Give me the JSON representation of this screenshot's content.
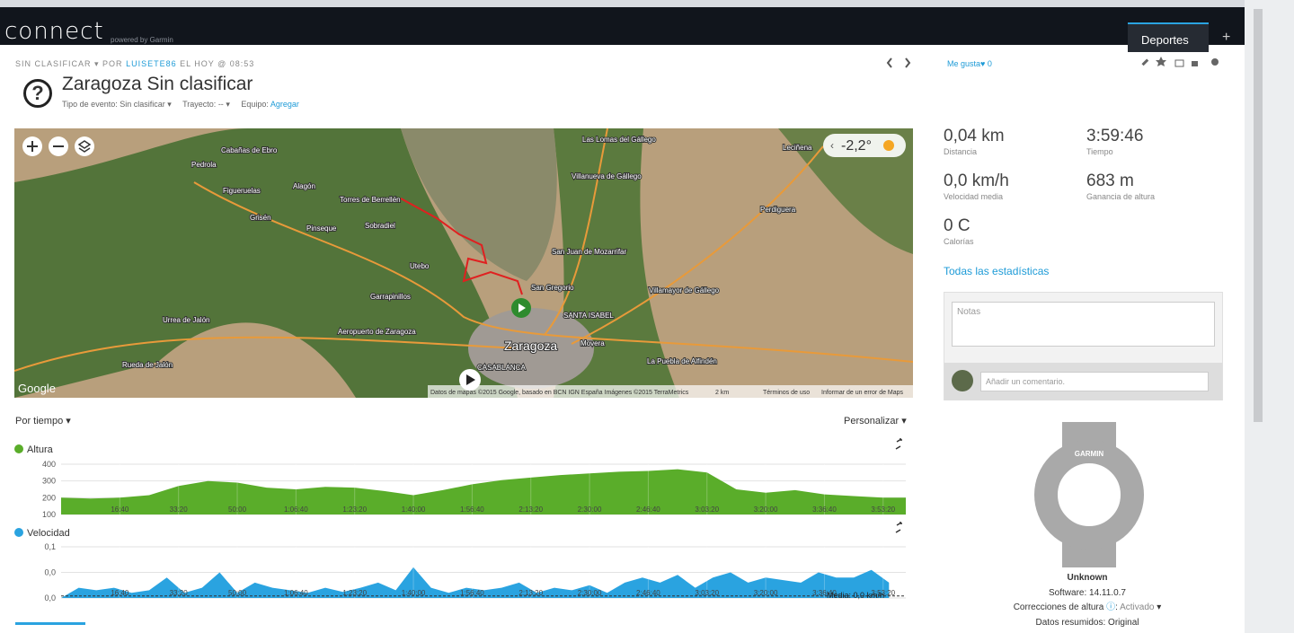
{
  "header": {
    "logo": "connect",
    "powered": "powered by Garmin",
    "menu": "Deportes",
    "add": "+"
  },
  "activity": {
    "breadcrumb": "SIN CLASIFICAR",
    "by": "POR",
    "user": "LUISETE86",
    "when": "EL HOY @ 08:53",
    "icon": "?",
    "title": "Zaragoza Sin clasificar",
    "event_label": "Tipo de evento:",
    "event": "Sin clasificar",
    "course_label": "Trayecto:",
    "course": "--",
    "gear_label": "Equipo:",
    "gear": "Agregar",
    "like": "Me gusta",
    "likes": 0
  },
  "map": {
    "temperature": "-2,2°",
    "google": "Google",
    "places": [
      "Cabañas de Ebro",
      "Pedrola",
      "Alagón",
      "Figueruelas",
      "Grisén",
      "Torres de Berrellén",
      "Pinseque",
      "Sobradiel",
      "Utebo",
      "Garrapinillos",
      "Urrea de Jalón",
      "Rueda de Jalón",
      "Aeropuerto de Zaragoza",
      "Zaragoza",
      "CASABLANCA",
      "Las Lomas del Gállego",
      "Villanueva de Gállego",
      "Leciñena",
      "Perdiguera",
      "San Juan de Mozarrifar",
      "San Gregorio",
      "Villamayor de Gállego",
      "SANTA ISABEL",
      "Movera",
      "La Puebla de Alfindén"
    ],
    "attribution": "Datos de mapas ©2015 Google, basado en BCN IGN España Imágenes ©2015 TerraMetrics",
    "scale": "2 km",
    "terms": "Términos de uso",
    "report": "Informar de un error de Maps"
  },
  "chart_controls": {
    "mode": "Por tiempo",
    "customize": "Personalizar"
  },
  "stats": [
    {
      "value": "0,04 km",
      "label": "Distancia"
    },
    {
      "value": "3:59:46",
      "label": "Tiempo"
    },
    {
      "value": "0,0 km/h",
      "label": "Velocidad media"
    },
    {
      "value": "683 m",
      "label": "Ganancia de altura"
    },
    {
      "value": "0 C",
      "label": "Calorías"
    }
  ],
  "all_stats": "Todas las estadísticas",
  "notes": "Notas",
  "comment": "Añadir un comentario.",
  "device": {
    "brand": "GARMIN",
    "name": "Unknown",
    "software": "Software: 14.11.0.7",
    "corrections_label": "Correcciones de altura",
    "corrections": "Activado",
    "summary": "Datos resumidos: Original"
  },
  "chart_data": [
    {
      "type": "area",
      "title": "Altura",
      "color": "#5aad2a",
      "x": [
        0,
        500,
        1000,
        1500,
        2000,
        2500,
        3000,
        3500,
        4000,
        4500,
        5000,
        5500,
        6000,
        6500,
        7000,
        7500,
        8000,
        8500,
        9000,
        9500,
        10000,
        10500,
        11000,
        11500,
        12000,
        12500,
        13000,
        13500,
        14000,
        14386
      ],
      "values": [
        200,
        195,
        200,
        215,
        270,
        300,
        290,
        260,
        250,
        265,
        260,
        240,
        215,
        245,
        280,
        305,
        320,
        335,
        345,
        355,
        360,
        370,
        350,
        250,
        230,
        245,
        220,
        210,
        200,
        200
      ],
      "xlim": [
        0,
        14386
      ],
      "ylim": [
        100,
        400
      ],
      "yticks": [
        100,
        200,
        300,
        400
      ],
      "xticks": [
        {
          "value": 1000,
          "label": "16:40"
        },
        {
          "value": 2000,
          "label": "33:20"
        },
        {
          "value": 3000,
          "label": "50:00"
        },
        {
          "value": 4000,
          "label": "1:06:40"
        },
        {
          "value": 5000,
          "label": "1:23:20"
        },
        {
          "value": 6000,
          "label": "1:40:00"
        },
        {
          "value": 7000,
          "label": "1:56:40"
        },
        {
          "value": 8000,
          "label": "2:13:20"
        },
        {
          "value": 9000,
          "label": "2:30:00"
        },
        {
          "value": 10000,
          "label": "2:46:40"
        },
        {
          "value": 11000,
          "label": "3:03:20"
        },
        {
          "value": 12000,
          "label": "3:20:00"
        },
        {
          "value": 13000,
          "label": "3:36:40"
        },
        {
          "value": 14000,
          "label": "3:53:20"
        }
      ],
      "grid": true
    },
    {
      "type": "area",
      "title": "Velocidad",
      "color": "#2aa3e0",
      "x": [
        0,
        300,
        600,
        900,
        1200,
        1500,
        1800,
        2100,
        2400,
        2700,
        3000,
        3300,
        3600,
        3900,
        4200,
        4500,
        4800,
        5100,
        5400,
        5700,
        6000,
        6300,
        6600,
        6900,
        7200,
        7500,
        7800,
        8100,
        8400,
        8700,
        9000,
        9300,
        9600,
        9900,
        10200,
        10500,
        10800,
        11100,
        11400,
        11700,
        12000,
        12300,
        12600,
        12900,
        13200,
        13500,
        13800,
        14100
      ],
      "values": [
        0.0,
        0.02,
        0.015,
        0.02,
        0.01,
        0.015,
        0.04,
        0.01,
        0.02,
        0.05,
        0.01,
        0.03,
        0.02,
        0.015,
        0.01,
        0.02,
        0.012,
        0.02,
        0.03,
        0.015,
        0.06,
        0.02,
        0.01,
        0.02,
        0.015,
        0.02,
        0.03,
        0.01,
        0.02,
        0.015,
        0.025,
        0.01,
        0.03,
        0.04,
        0.03,
        0.045,
        0.02,
        0.04,
        0.05,
        0.03,
        0.04,
        0.035,
        0.03,
        0.05,
        0.04,
        0.04,
        0.055,
        0.03
      ],
      "xlim": [
        0,
        14386
      ],
      "ylim": [
        0,
        0.1
      ],
      "yticks": [
        {
          "value": 0,
          "label": "0,0"
        },
        {
          "value": 0.05,
          "label": "0,0"
        },
        {
          "value": 0.1,
          "label": "0,1"
        }
      ],
      "xticks": [
        {
          "value": 1000,
          "label": "16:40"
        },
        {
          "value": 2000,
          "label": "33:20"
        },
        {
          "value": 3000,
          "label": "50:00"
        },
        {
          "value": 4000,
          "label": "1:06:40"
        },
        {
          "value": 5000,
          "label": "1:23:20"
        },
        {
          "value": 6000,
          "label": "1:40:00"
        },
        {
          "value": 7000,
          "label": "1:56:40"
        },
        {
          "value": 8000,
          "label": "2:13:20"
        },
        {
          "value": 9000,
          "label": "2:30:00"
        },
        {
          "value": 10000,
          "label": "2:46:40"
        },
        {
          "value": 11000,
          "label": "3:03:20"
        },
        {
          "value": 12000,
          "label": "3:20:00"
        },
        {
          "value": 13000,
          "label": "3:36:40"
        },
        {
          "value": 14000,
          "label": "3:53:20"
        }
      ],
      "average": 0.004,
      "average_label": "Media: 0,0 km/h",
      "grid": true
    }
  ]
}
